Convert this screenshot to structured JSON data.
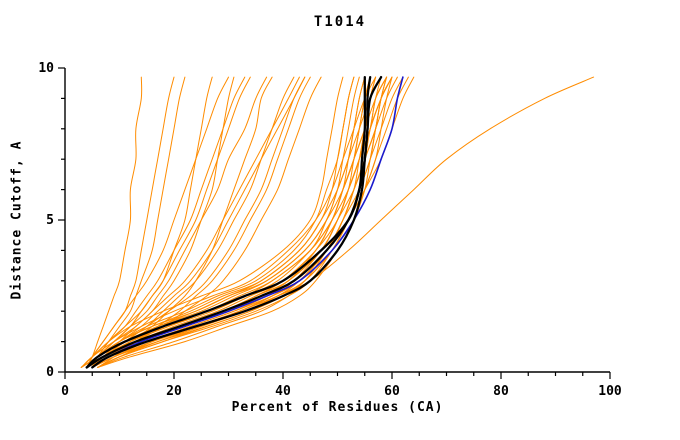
{
  "chart_data": {
    "type": "line",
    "title": "T1014",
    "xlabel": "Percent of Residues (CA)",
    "ylabel": "Distance Cutoff, A",
    "xlim": [
      0,
      100
    ],
    "ylim": [
      0,
      10
    ],
    "xtick_vals": [
      0,
      20,
      40,
      60,
      80,
      100
    ],
    "xtick_labels": [
      "0",
      "20",
      "40",
      "60",
      "80",
      "100"
    ],
    "xminor_step": 5,
    "ytick_vals": [
      0,
      5,
      10
    ],
    "ytick_labels": [
      "0",
      "5",
      "10"
    ],
    "yminor_step": 1,
    "grid": false,
    "legend": "none",
    "colors": {
      "orange": "#FF8C00",
      "black": "#000000",
      "blue": "#1A1ACD"
    },
    "line_widths": {
      "orange": 1,
      "black": 2.3,
      "blue": 1.6
    },
    "y_grid": [
      0.15,
      0.5,
      1,
      1.5,
      2,
      2.5,
      3,
      4,
      5,
      6,
      7,
      8,
      9,
      9.7
    ],
    "series": [
      {
        "c": "orange",
        "x": [
          4,
          6,
          10,
          16,
          24,
          30,
          36,
          43,
          47,
          49,
          50,
          51,
          52,
          53
        ]
      },
      {
        "c": "orange",
        "x": [
          5,
          8,
          14,
          22,
          30,
          36,
          41,
          46,
          49,
          51,
          52,
          53,
          54,
          55
        ]
      },
      {
        "c": "orange",
        "x": [
          3,
          5,
          8,
          12,
          18,
          25,
          32,
          40,
          45,
          47,
          48,
          49,
          50,
          51
        ]
      },
      {
        "c": "orange",
        "x": [
          6,
          10,
          18,
          26,
          34,
          40,
          44,
          48,
          51,
          53,
          54,
          55,
          56,
          57
        ]
      },
      {
        "c": "orange",
        "x": [
          4,
          7,
          12,
          19,
          27,
          33,
          38,
          45,
          48,
          50,
          51,
          52,
          53,
          54
        ]
      },
      {
        "c": "orange",
        "x": [
          5,
          9,
          16,
          24,
          32,
          38,
          42,
          47,
          50,
          52,
          53,
          54,
          55,
          56
        ]
      },
      {
        "c": "orange",
        "x": [
          4,
          6,
          11,
          17,
          25,
          31,
          37,
          44,
          48,
          50,
          52,
          53,
          54,
          55
        ]
      },
      {
        "c": "orange",
        "x": [
          3,
          6,
          10,
          15,
          22,
          28,
          35,
          42,
          46,
          48,
          50,
          51,
          52,
          53
        ]
      },
      {
        "c": "orange",
        "x": [
          5,
          8,
          13,
          20,
          28,
          34,
          40,
          46,
          49,
          51,
          53,
          54,
          55,
          56
        ]
      },
      {
        "c": "orange",
        "x": [
          6,
          11,
          20,
          28,
          36,
          41,
          45,
          49,
          52,
          54,
          55,
          56,
          57,
          58
        ]
      },
      {
        "c": "orange",
        "x": [
          4,
          7,
          13,
          21,
          29,
          35,
          40,
          46,
          50,
          52,
          54,
          55,
          56,
          58
        ]
      },
      {
        "c": "orange",
        "x": [
          5,
          9,
          15,
          23,
          31,
          37,
          42,
          48,
          51,
          53,
          55,
          56,
          58,
          60
        ]
      },
      {
        "c": "orange",
        "x": [
          4,
          8,
          14,
          22,
          30,
          36,
          41,
          47,
          50,
          53,
          55,
          57,
          59,
          61
        ]
      },
      {
        "c": "orange",
        "x": [
          6,
          10,
          17,
          25,
          33,
          39,
          44,
          49,
          52,
          55,
          57,
          59,
          61,
          63
        ]
      },
      {
        "c": "orange",
        "x": [
          5,
          8,
          15,
          23,
          31,
          38,
          43,
          48,
          52,
          55,
          58,
          60,
          62,
          64
        ]
      },
      {
        "c": "orange",
        "x": [
          4,
          7,
          12,
          18,
          26,
          32,
          38,
          45,
          49,
          52,
          54,
          56,
          58,
          60
        ]
      },
      {
        "c": "orange",
        "x": [
          3,
          5,
          9,
          14,
          20,
          27,
          34,
          41,
          46,
          49,
          51,
          53,
          55,
          57
        ]
      },
      {
        "c": "orange",
        "x": [
          5,
          9,
          16,
          25,
          33,
          39,
          43,
          48,
          51,
          54,
          56,
          58,
          60,
          62
        ]
      },
      {
        "c": "orange",
        "x": [
          4,
          6,
          10,
          16,
          23,
          29,
          36,
          43,
          47,
          50,
          52,
          54,
          56,
          58
        ]
      },
      {
        "c": "orange",
        "x": [
          6,
          10,
          18,
          27,
          35,
          41,
          45,
          50,
          53,
          55,
          57,
          58,
          59,
          60
        ]
      },
      {
        "c": "orange",
        "x": [
          4,
          7,
          12,
          19,
          26,
          33,
          39,
          45,
          49,
          51,
          53,
          55,
          56,
          57
        ]
      },
      {
        "c": "orange",
        "x": [
          5,
          8,
          14,
          21,
          29,
          35,
          41,
          47,
          50,
          52,
          54,
          56,
          57,
          59
        ]
      },
      {
        "c": "orange",
        "x": [
          3,
          6,
          11,
          17,
          24,
          30,
          37,
          44,
          48,
          51,
          53,
          55,
          57,
          59
        ]
      },
      {
        "c": "orange",
        "x": [
          5,
          9,
          17,
          26,
          34,
          40,
          44,
          49,
          52,
          54,
          56,
          57,
          58,
          59
        ]
      },
      {
        "c": "orange",
        "x": [
          4,
          8,
          15,
          24,
          32,
          38,
          43,
          48,
          51,
          53,
          55,
          57,
          58,
          60
        ]
      },
      {
        "c": "orange",
        "x": [
          6,
          12,
          22,
          30,
          38,
          43,
          46,
          50,
          53,
          55,
          56,
          57,
          58,
          59
        ]
      },
      {
        "c": "orange",
        "x": [
          4,
          5,
          7,
          9,
          11,
          12,
          13,
          14,
          15,
          16,
          17,
          18,
          19,
          20
        ]
      },
      {
        "c": "orange",
        "x": [
          4,
          5,
          6,
          7,
          8,
          9,
          10,
          11,
          12,
          12,
          13,
          13,
          14,
          14
        ]
      },
      {
        "c": "orange",
        "x": [
          5,
          6,
          8,
          10,
          12,
          13,
          14,
          16,
          17,
          18,
          19,
          20,
          21,
          22
        ]
      },
      {
        "c": "orange",
        "x": [
          4,
          6,
          9,
          12,
          14,
          16,
          18,
          20,
          22,
          23,
          24,
          25,
          26,
          27
        ]
      },
      {
        "c": "orange",
        "x": [
          5,
          7,
          10,
          13,
          16,
          18,
          20,
          23,
          25,
          27,
          28,
          29,
          30,
          31
        ]
      },
      {
        "c": "orange",
        "x": [
          4,
          6,
          8,
          11,
          14,
          16,
          18,
          21,
          24,
          26,
          28,
          30,
          32,
          34
        ]
      },
      {
        "c": "orange",
        "x": [
          5,
          8,
          12,
          16,
          19,
          22,
          24,
          27,
          29,
          31,
          33,
          35,
          36,
          38
        ]
      },
      {
        "c": "orange",
        "x": [
          4,
          7,
          11,
          15,
          18,
          21,
          24,
          28,
          31,
          34,
          36,
          38,
          40,
          42
        ]
      },
      {
        "c": "orange",
        "x": [
          6,
          9,
          13,
          17,
          21,
          24,
          27,
          31,
          34,
          37,
          39,
          41,
          43,
          45
        ]
      },
      {
        "c": "orange",
        "x": [
          4,
          5,
          7,
          9,
          11,
          13,
          15,
          18,
          20,
          22,
          24,
          26,
          28,
          30
        ]
      },
      {
        "c": "orange",
        "x": [
          5,
          6,
          9,
          12,
          15,
          17,
          19,
          22,
          25,
          28,
          30,
          33,
          35,
          37
        ]
      },
      {
        "c": "orange",
        "x": [
          4,
          6,
          10,
          14,
          17,
          20,
          23,
          27,
          30,
          33,
          36,
          39,
          42,
          44
        ]
      },
      {
        "c": "orange",
        "x": [
          5,
          7,
          11,
          15,
          19,
          23,
          26,
          30,
          33,
          36,
          38,
          40,
          42,
          44
        ]
      },
      {
        "c": "orange",
        "x": [
          3,
          5,
          8,
          11,
          13,
          15,
          17,
          20,
          23,
          25,
          27,
          29,
          31,
          33
        ]
      },
      {
        "c": "orange",
        "x": [
          4,
          6,
          9,
          13,
          16,
          19,
          22,
          26,
          29,
          32,
          35,
          38,
          41,
          43
        ]
      },
      {
        "c": "orange",
        "x": [
          5,
          8,
          13,
          18,
          22,
          26,
          29,
          33,
          36,
          39,
          41,
          43,
          45,
          47
        ]
      },
      {
        "c": "orange",
        "x": [
          6,
          10,
          16,
          24,
          32,
          39,
          45,
          52,
          58,
          64,
          70,
          78,
          88,
          97
        ]
      },
      {
        "c": "blue",
        "x": [
          5,
          8,
          14,
          22,
          30,
          37,
          43,
          49,
          53,
          56,
          58,
          60,
          61,
          62
        ]
      },
      {
        "c": "black",
        "x": [
          4,
          7,
          13,
          21,
          29,
          36,
          42,
          48,
          52,
          54,
          54.5,
          55,
          55,
          55
        ]
      },
      {
        "c": "black",
        "x": [
          5,
          8,
          15,
          24,
          33,
          40,
          45,
          50,
          53,
          54.5,
          55,
          55.5,
          55.5,
          56
        ]
      },
      {
        "c": "black",
        "x": [
          4,
          6,
          11,
          18,
          26,
          33,
          40,
          47,
          52,
          54,
          55,
          55.5,
          56,
          58
        ]
      }
    ]
  }
}
